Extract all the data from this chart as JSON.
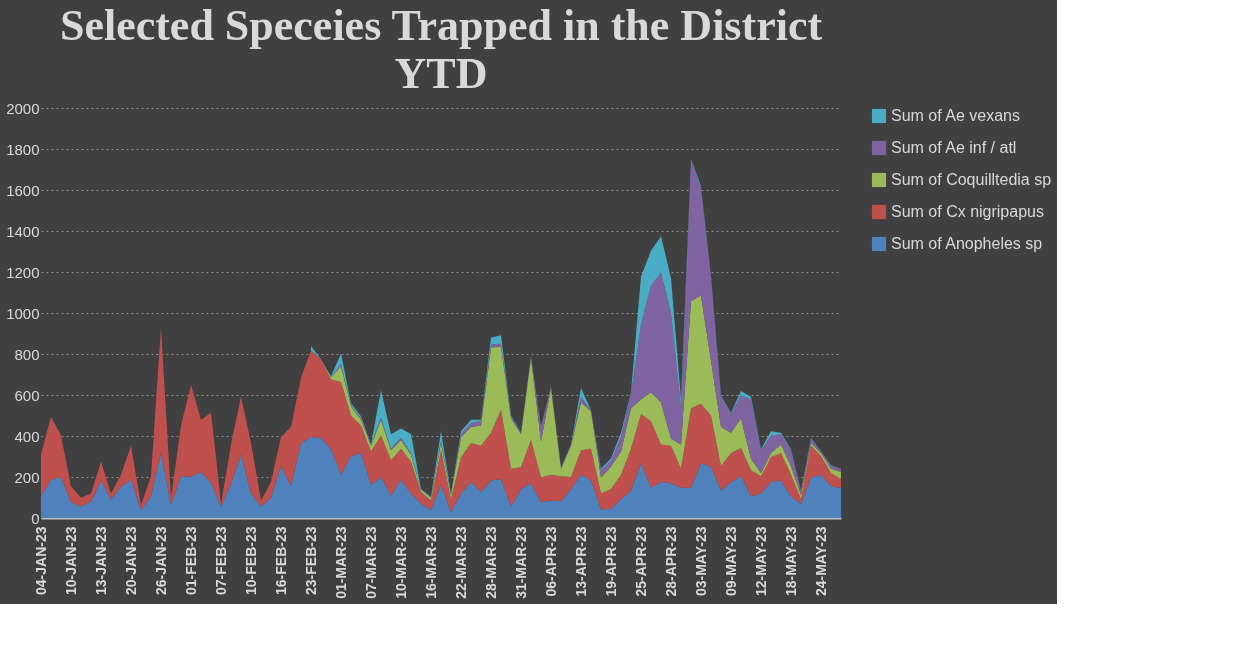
{
  "chart_data": {
    "type": "area",
    "stacked": true,
    "title": "Selected Speceies Trapped in the District YTD",
    "categories": [
      "04-JAN-23",
      null,
      null,
      "10-JAN-23",
      null,
      null,
      "13-JAN-23",
      null,
      null,
      "20-JAN-23",
      null,
      null,
      "26-JAN-23",
      null,
      null,
      "01-FEB-23",
      null,
      null,
      "07-FEB-23",
      null,
      null,
      "10-FEB-23",
      null,
      null,
      "16-FEB-23",
      null,
      null,
      "23-FEB-23",
      null,
      null,
      "01-MAR-23",
      null,
      null,
      "07-MAR-23",
      null,
      null,
      "10-MAR-23",
      null,
      null,
      "16-MAR-23",
      null,
      null,
      "22-MAR-23",
      null,
      null,
      "28-MAR-23",
      null,
      null,
      "31-MAR-23",
      null,
      null,
      "06-APR-23",
      null,
      null,
      "13-APR-23",
      null,
      null,
      "19-APR-23",
      null,
      null,
      "25-APR-23",
      null,
      null,
      "28-APR-23",
      null,
      null,
      "03-MAY-23",
      null,
      null,
      "09-MAY-23",
      null,
      null,
      "12-MAY-23",
      null,
      null,
      "18-MAY-23",
      null,
      null,
      "24-MAY-23",
      null,
      null
    ],
    "series": [
      {
        "name": "Sum of Anopheles sp",
        "color": "#4f81bd",
        "values": [
          106,
          186,
          200,
          77,
          56,
          82,
          180,
          92,
          152,
          186,
          39,
          106,
          317,
          63,
          204,
          201,
          225,
          172,
          56,
          166,
          310,
          120,
          56,
          99,
          254,
          155,
          366,
          395,
          392,
          338,
          211,
          303,
          317,
          162,
          200,
          110,
          186,
          120,
          70,
          40,
          162,
          28,
          120,
          176,
          127,
          183,
          190,
          56,
          141,
          169,
          77,
          85,
          82,
          141,
          211,
          183,
          42,
          45,
          92,
          134,
          268,
          148,
          176,
          169,
          148,
          148,
          268,
          247,
          134,
          176,
          204,
          106,
          120,
          176,
          183,
          106,
          70,
          197,
          211,
          155,
          148
        ]
      },
      {
        "name": "Sum of Cx nigripapus",
        "color": "#c0504d",
        "values": [
          204,
          307,
          202,
          78,
          43,
          38,
          95,
          28,
          59,
          166,
          24,
          98,
          613,
          36,
          247,
          447,
          254,
          342,
          14,
          193,
          282,
          246,
          29,
          77,
          141,
          289,
          318,
          422,
          383,
          338,
          452,
          197,
          134,
          162,
          202,
          172,
          152,
          155,
          57,
          45,
          169,
          64,
          176,
          190,
          225,
          233,
          338,
          184,
          106,
          212,
          120,
          126,
          122,
          59,
          120,
          155,
          78,
          96,
          119,
          204,
          239,
          324,
          183,
          183,
          92,
          387,
          289,
          253,
          120,
          141,
          137,
          127,
          84,
          120,
          134,
          105,
          22,
          155,
          92,
          64,
          42
        ]
      },
      {
        "name": "Sum of Coquilltedia sp",
        "color": "#9bbb59",
        "values": [
          0,
          0,
          0,
          0,
          0,
          0,
          0,
          0,
          0,
          0,
          0,
          0,
          0,
          0,
          0,
          0,
          0,
          0,
          0,
          0,
          0,
          0,
          0,
          0,
          0,
          0,
          0,
          0,
          0,
          10,
          77,
          45,
          30,
          28,
          77,
          49,
          43,
          35,
          10,
          15,
          35,
          20,
          98,
          78,
          99,
          416,
          307,
          246,
          162,
          401,
          176,
          423,
          36,
          152,
          233,
          183,
          77,
          110,
          113,
          197,
          71,
          141,
          205,
          36,
          119,
          522,
          528,
          266,
          190,
          99,
          145,
          56,
          15,
          21,
          42,
          43,
          20,
          14,
          14,
          21,
          35
        ]
      },
      {
        "name": "Sum of Ae inf / atl",
        "color": "#8064a2",
        "values": [
          0,
          0,
          0,
          0,
          0,
          0,
          0,
          0,
          0,
          0,
          0,
          0,
          0,
          0,
          0,
          0,
          0,
          0,
          0,
          0,
          0,
          0,
          0,
          0,
          0,
          0,
          0,
          0,
          0,
          0,
          10,
          5,
          5,
          3,
          10,
          7,
          11,
          5,
          0,
          3,
          10,
          3,
          15,
          21,
          21,
          14,
          15,
          8,
          3,
          2,
          71,
          5,
          5,
          3,
          28,
          2,
          35,
          30,
          71,
          71,
          366,
          521,
          634,
          613,
          176,
          691,
          522,
          411,
          148,
          91,
          113,
          289,
          112,
          85,
          50,
          77,
          20,
          22,
          5,
          14,
          15
        ]
      },
      {
        "name": "Sum of Ae vexans",
        "color": "#4bacc6",
        "values": [
          null,
          null,
          null,
          null,
          null,
          null,
          null,
          null,
          null,
          null,
          null,
          null,
          null,
          null,
          null,
          null,
          null,
          null,
          null,
          null,
          null,
          null,
          null,
          null,
          null,
          null,
          null,
          21,
          0,
          5,
          53,
          10,
          10,
          5,
          134,
          71,
          45,
          95,
          4,
          2,
          47,
          5,
          14,
          14,
          7,
          35,
          41,
          6,
          4,
          2,
          3,
          2,
          2,
          3,
          42,
          3,
          8,
          10,
          21,
          7,
          233,
          170,
          176,
          169,
          43,
          4,
          10,
          5,
          5,
          5,
          21,
          14,
          5,
          21,
          7,
          3,
          2,
          3,
          3,
          3,
          0
        ]
      }
    ],
    "ylim": [
      0,
      2000
    ],
    "yticks": [
      0,
      200,
      400,
      600,
      800,
      1000,
      1200,
      1400,
      1600,
      1800,
      2000
    ],
    "grid": "y",
    "legend": "right"
  }
}
